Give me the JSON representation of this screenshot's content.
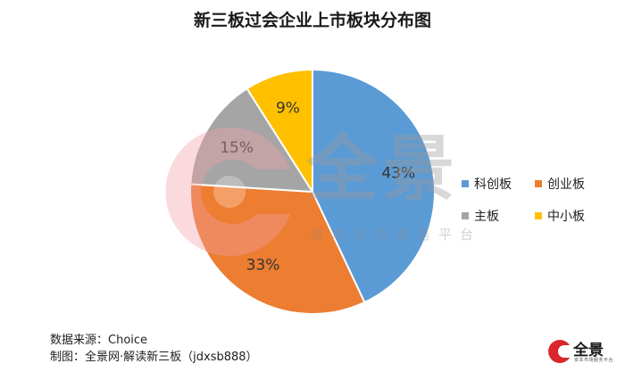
{
  "chart_data": {
    "type": "pie",
    "title": "新三板过会企业上市板块分布图",
    "categories": [
      "科创板",
      "创业板",
      "主板",
      "中小板"
    ],
    "values": [
      43,
      33,
      15,
      9
    ],
    "value_labels": [
      "43%",
      "33%",
      "15%",
      "9%"
    ],
    "colors": [
      "#5B9BD5",
      "#ED7D31",
      "#A5A5A5",
      "#FFC000"
    ],
    "legend_position": "right"
  },
  "source": {
    "line1": "数据来源：Choice",
    "line2": "制图：全景网·解读新三板（jdxsb888）"
  },
  "watermark": {
    "main": "全景",
    "sub": "资本市场服务平台"
  },
  "logo": {
    "text": "全景",
    "sub": "资本市场服务平台"
  }
}
